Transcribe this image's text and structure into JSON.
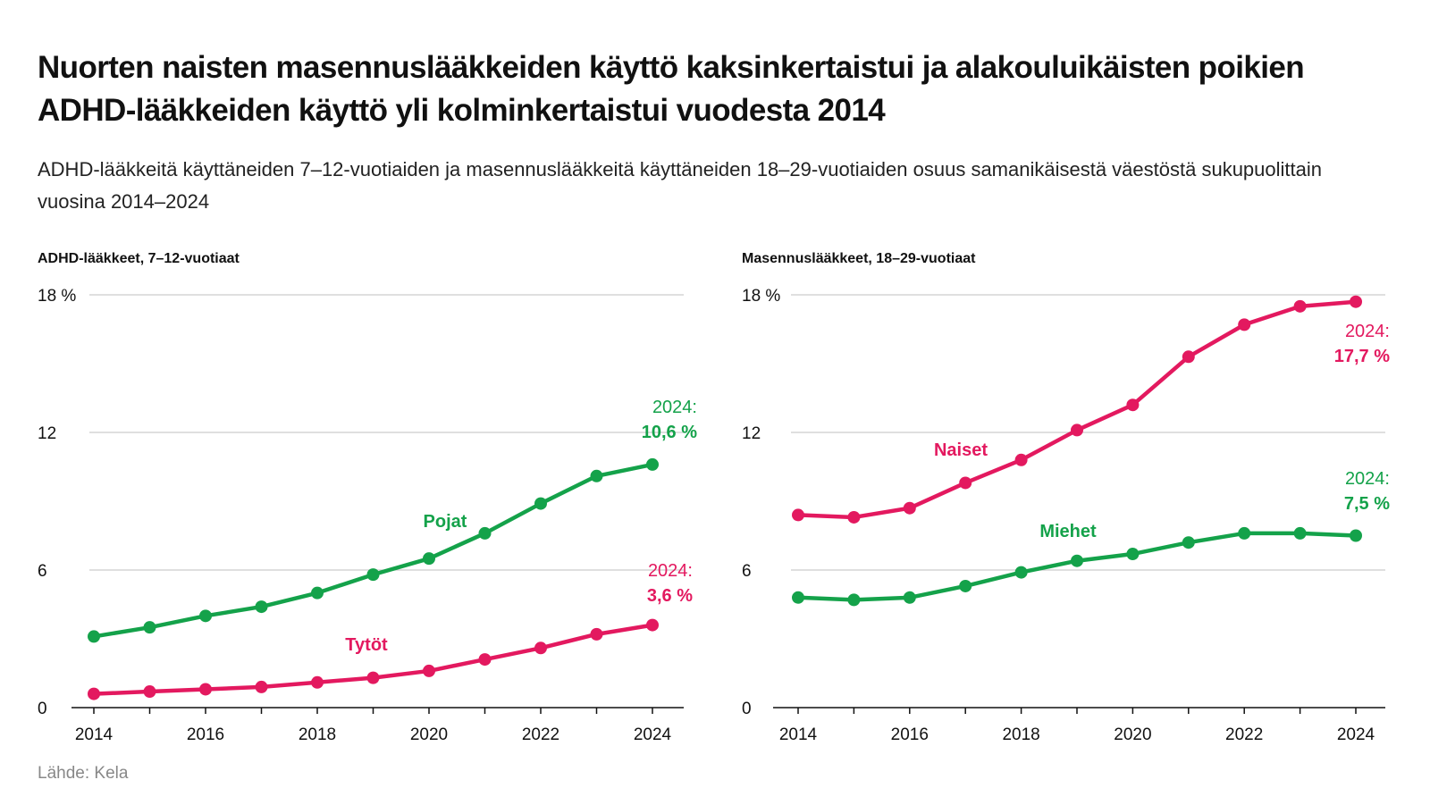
{
  "title": "Nuorten naisten masennuslääkkeiden käyttö kaksinkertaistui ja alakouluikäisten poikien ADHD-lääkkeiden käyttö yli kolminkertaistui vuodesta 2014",
  "subtitle": "ADHD-lääkkeitä käyttäneiden 7–12-vuotiaiden ja masennuslääkkeitä käyttäneiden 18–29-vuotiaiden osuus samanikäisestä väestöstä sukupuolittain vuosina 2014–2024",
  "source": "Lähde: Kela",
  "colors": {
    "green": "#14a24a",
    "pink": "#e3195f",
    "grid": "#cccccc",
    "axis": "#111111"
  },
  "chart_data": [
    {
      "type": "line",
      "title": "ADHD-lääkkeet, 7–12-vuotiaat",
      "x": [
        2014,
        2015,
        2016,
        2017,
        2018,
        2019,
        2020,
        2021,
        2022,
        2023,
        2024
      ],
      "xticks": [
        "2014",
        "2016",
        "2018",
        "2020",
        "2022",
        "2024"
      ],
      "yticks": [
        0,
        6,
        12,
        18
      ],
      "ytick_labels": [
        "0",
        "6",
        "12",
        "18 %"
      ],
      "ylim": [
        0,
        18
      ],
      "series": [
        {
          "name": "Pojat",
          "color": "green",
          "values": [
            3.1,
            3.5,
            4.0,
            4.4,
            5.0,
            5.8,
            6.5,
            7.6,
            8.9,
            10.1,
            10.6
          ],
          "label_year_text": "2024:",
          "label_value_text": "10,6 %"
        },
        {
          "name": "Tytöt",
          "color": "pink",
          "values": [
            0.6,
            0.7,
            0.8,
            0.9,
            1.1,
            1.3,
            1.6,
            2.1,
            2.6,
            3.2,
            3.6
          ],
          "label_year_text": "2024:",
          "label_value_text": "3,6 %"
        }
      ]
    },
    {
      "type": "line",
      "title": "Masennuslääkkeet, 18–29-vuotiaat",
      "x": [
        2014,
        2015,
        2016,
        2017,
        2018,
        2019,
        2020,
        2021,
        2022,
        2023,
        2024
      ],
      "xticks": [
        "2014",
        "2016",
        "2018",
        "2020",
        "2022",
        "2024"
      ],
      "yticks": [
        0,
        6,
        12,
        18
      ],
      "ytick_labels": [
        "0",
        "6",
        "12",
        "18 %"
      ],
      "ylim": [
        0,
        18
      ],
      "series": [
        {
          "name": "Naiset",
          "color": "pink",
          "values": [
            8.4,
            8.3,
            8.7,
            9.8,
            10.8,
            12.1,
            13.2,
            15.3,
            16.7,
            17.5,
            17.7
          ],
          "label_year_text": "2024:",
          "label_value_text": "17,7 %"
        },
        {
          "name": "Miehet",
          "color": "green",
          "values": [
            4.8,
            4.7,
            4.8,
            5.3,
            5.9,
            6.4,
            6.7,
            7.2,
            7.6,
            7.6,
            7.5
          ],
          "label_year_text": "2024:",
          "label_value_text": "7,5 %"
        }
      ]
    }
  ]
}
